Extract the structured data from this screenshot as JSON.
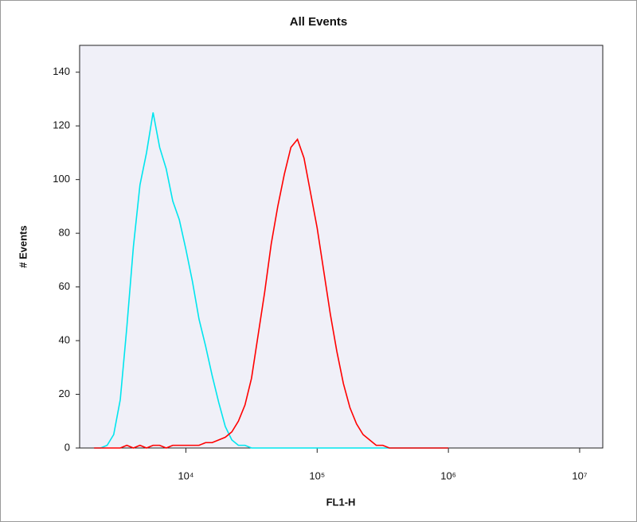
{
  "chart_data": {
    "type": "line",
    "title": "All Events",
    "x_label": "FL1-H",
    "y_label": "# Events",
    "log_x": true,
    "background": "#f0f0f8",
    "x": [
      1995,
      2239,
      2512,
      2818,
      3162,
      3548,
      3981,
      4467,
      5012,
      5623,
      6310,
      7079,
      7943,
      8913,
      10000,
      11220,
      12589,
      14125,
      15849,
      17783,
      19953,
      22387,
      25119,
      28184,
      31623,
      35481,
      39811,
      44668,
      50119,
      56234,
      63096,
      70795,
      79433,
      89125,
      100000,
      112202,
      125893,
      141254,
      158489,
      177828,
      199526,
      223872,
      251189,
      281838,
      316228,
      354813,
      398107,
      446684,
      501187,
      562341,
      630957,
      707946,
      794328,
      891251,
      1000000
    ],
    "series": [
      {
        "color": "#00e5ee",
        "values": [
          0,
          0,
          1,
          5,
          18,
          45,
          75,
          98,
          110,
          125,
          112,
          104,
          92,
          85,
          74,
          62,
          48,
          38,
          27,
          17,
          8,
          3,
          1,
          1,
          0,
          0,
          0,
          0,
          0,
          0,
          0,
          0,
          0,
          0,
          0,
          0,
          0,
          0,
          0,
          0,
          0,
          0,
          0,
          0,
          0,
          0,
          0,
          0,
          0,
          0,
          0,
          0,
          0,
          0,
          0
        ]
      },
      {
        "color": "#ff0000",
        "values": [
          0,
          0,
          0,
          0,
          0,
          1,
          0,
          1,
          0,
          1,
          1,
          0,
          1,
          1,
          1,
          1,
          1,
          2,
          2,
          3,
          4,
          6,
          10,
          16,
          26,
          42,
          58,
          76,
          90,
          102,
          112,
          115,
          108,
          95,
          82,
          66,
          50,
          36,
          24,
          15,
          9,
          5,
          3,
          1,
          1,
          0,
          0,
          0,
          0,
          0,
          0,
          0,
          0,
          0,
          0
        ]
      }
    ],
    "xlim": [
      1550,
      15000000
    ],
    "xticks": [
      {
        "value": 10000,
        "label": "10⁴"
      },
      {
        "value": 100000,
        "label": "10⁵"
      },
      {
        "value": 1000000,
        "label": "10⁶"
      },
      {
        "value": 10000000,
        "label": "10⁷"
      }
    ],
    "ylim": [
      0,
      150
    ],
    "yticks": [
      0,
      20,
      40,
      60,
      80,
      100,
      120,
      140
    ]
  }
}
